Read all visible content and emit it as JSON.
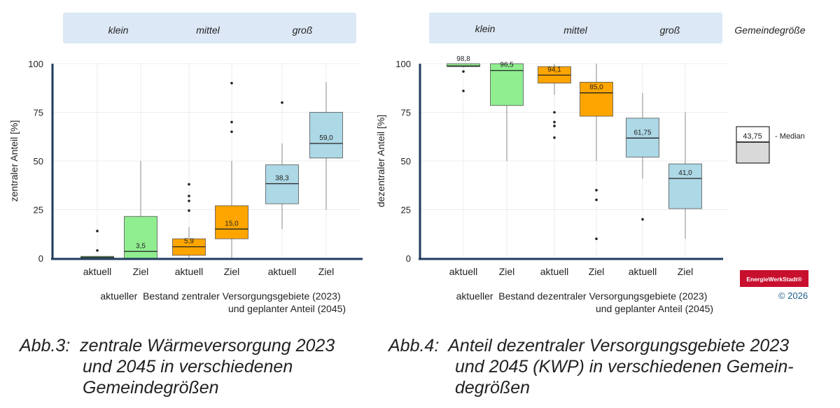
{
  "chart_data": [
    {
      "type": "boxplot",
      "ylabel": "zentraler Anteil [%]",
      "ylim": [
        0,
        100
      ],
      "yticks": [
        0,
        25,
        50,
        75,
        100
      ],
      "categories": [
        "aktuell",
        "Ziel",
        "aktuell",
        "Ziel",
        "aktuell",
        "Ziel"
      ],
      "groups": [
        "klein",
        "mittel",
        "groß"
      ],
      "xlabel": [
        "aktueller  Bestand zentraler Versorgungsgebiete (2023)",
        "und geplanter Anteil (2045)"
      ],
      "boxes": [
        {
          "group": "klein",
          "category": "aktuell",
          "color": "#90ee90",
          "q1": 0,
          "median": 0.5,
          "q3": 1,
          "whisker_low": 0,
          "whisker_high": 1,
          "outliers": [
            4,
            14
          ],
          "label": ""
        },
        {
          "group": "klein",
          "category": "Ziel",
          "color": "#90ee90",
          "q1": 0,
          "median": 3.5,
          "q3": 21.5,
          "whisker_low": 0,
          "whisker_high": 50,
          "outliers": [],
          "label": "3,5"
        },
        {
          "group": "mittel",
          "category": "aktuell",
          "color": "#ffa500",
          "q1": 1.5,
          "median": 5.9,
          "q3": 10,
          "whisker_low": 0,
          "whisker_high": 16,
          "outliers": [
            24.5,
            29.5,
            32,
            38
          ],
          "label": "5,9"
        },
        {
          "group": "mittel",
          "category": "Ziel",
          "color": "#ffa500",
          "q1": 10,
          "median": 15.0,
          "q3": 27,
          "whisker_low": 0,
          "whisker_high": 50,
          "outliers": [
            65,
            70,
            90
          ],
          "label": "15,0"
        },
        {
          "group": "groß",
          "category": "aktuell",
          "color": "#add8e6",
          "q1": 28,
          "median": 38.3,
          "q3": 48,
          "whisker_low": 15,
          "whisker_high": 59,
          "outliers": [
            80
          ],
          "label": "38,3"
        },
        {
          "group": "groß",
          "category": "Ziel",
          "color": "#add8e6",
          "q1": 51.5,
          "median": 59.0,
          "q3": 75,
          "whisker_low": 25,
          "whisker_high": 90.5,
          "outliers": [],
          "label": "59,0"
        }
      ]
    },
    {
      "type": "boxplot",
      "ylabel": "dezentraler Anteil [%]",
      "ylim": [
        0,
        100
      ],
      "yticks": [
        0,
        25,
        50,
        75,
        100
      ],
      "categories": [
        "aktuell",
        "Ziel",
        "aktuell",
        "Ziel",
        "aktuell",
        "Ziel"
      ],
      "groups": [
        "klein",
        "mittel",
        "groß"
      ],
      "xlabel": [
        "aktueller  Bestand dezentraler Versorgungsgebiete (2023)",
        "und geplanter Anteil (2045)"
      ],
      "boxes": [
        {
          "group": "klein",
          "category": "aktuell",
          "color": "#90ee90",
          "q1": 98.5,
          "median": 98.8,
          "q3": 100,
          "whisker_low": 98,
          "whisker_high": 100,
          "outliers": [
            86,
            96
          ],
          "label": "98,8"
        },
        {
          "group": "klein",
          "category": "Ziel",
          "color": "#90ee90",
          "q1": 78.5,
          "median": 96.5,
          "q3": 100,
          "whisker_low": 50,
          "whisker_high": 100,
          "outliers": [],
          "label": "96,5"
        },
        {
          "group": "mittel",
          "category": "aktuell",
          "color": "#ffa500",
          "q1": 90,
          "median": 94.1,
          "q3": 98.5,
          "whisker_low": 84,
          "whisker_high": 100,
          "outliers": [
            62,
            68,
            70,
            75
          ],
          "label": "94,1"
        },
        {
          "group": "mittel",
          "category": "Ziel",
          "color": "#ffa500",
          "q1": 73,
          "median": 85.0,
          "q3": 90.5,
          "whisker_low": 50,
          "whisker_high": 100,
          "outliers": [
            10,
            30,
            35
          ],
          "label": "85,0"
        },
        {
          "group": "groß",
          "category": "aktuell",
          "color": "#add8e6",
          "q1": 52,
          "median": 61.75,
          "q3": 72,
          "whisker_low": 41,
          "whisker_high": 85,
          "outliers": [
            20
          ],
          "label": "61,75"
        },
        {
          "group": "groß",
          "category": "Ziel",
          "color": "#add8e6",
          "q1": 25.5,
          "median": 41.0,
          "q3": 48.5,
          "whisker_low": 10,
          "whisker_high": 75,
          "outliers": [],
          "label": "41,0"
        }
      ]
    }
  ],
  "header": {
    "groups": [
      "klein",
      "mittel",
      "groß"
    ],
    "size_label": "Gemeindegröße"
  },
  "legend": {
    "value": "43,75",
    "text": "- Median",
    "box_color": "#d9d9d9"
  },
  "brand": {
    "logo": "EnergieWerkStadt®",
    "copyright": "© 2026",
    "logo_color": "#c8102e",
    "copyright_color": "#1f5f8b"
  },
  "captions": {
    "fig3": [
      "Abb.3:  zentrale Wärmeversorgung 2023",
      "und 2045 in verschiedenen",
      "Gemeindegrößen"
    ],
    "fig4": [
      "Abb.4:  Anteil dezentraler Versorgungsgebiete 2023",
      "und 2045 (KWP) in verschiedenen Gemein-",
      "degrößen"
    ]
  },
  "colors": {
    "axis": "#1f3b5c",
    "header_band": "#dce8f5",
    "grid": "#e6e6e6"
  }
}
